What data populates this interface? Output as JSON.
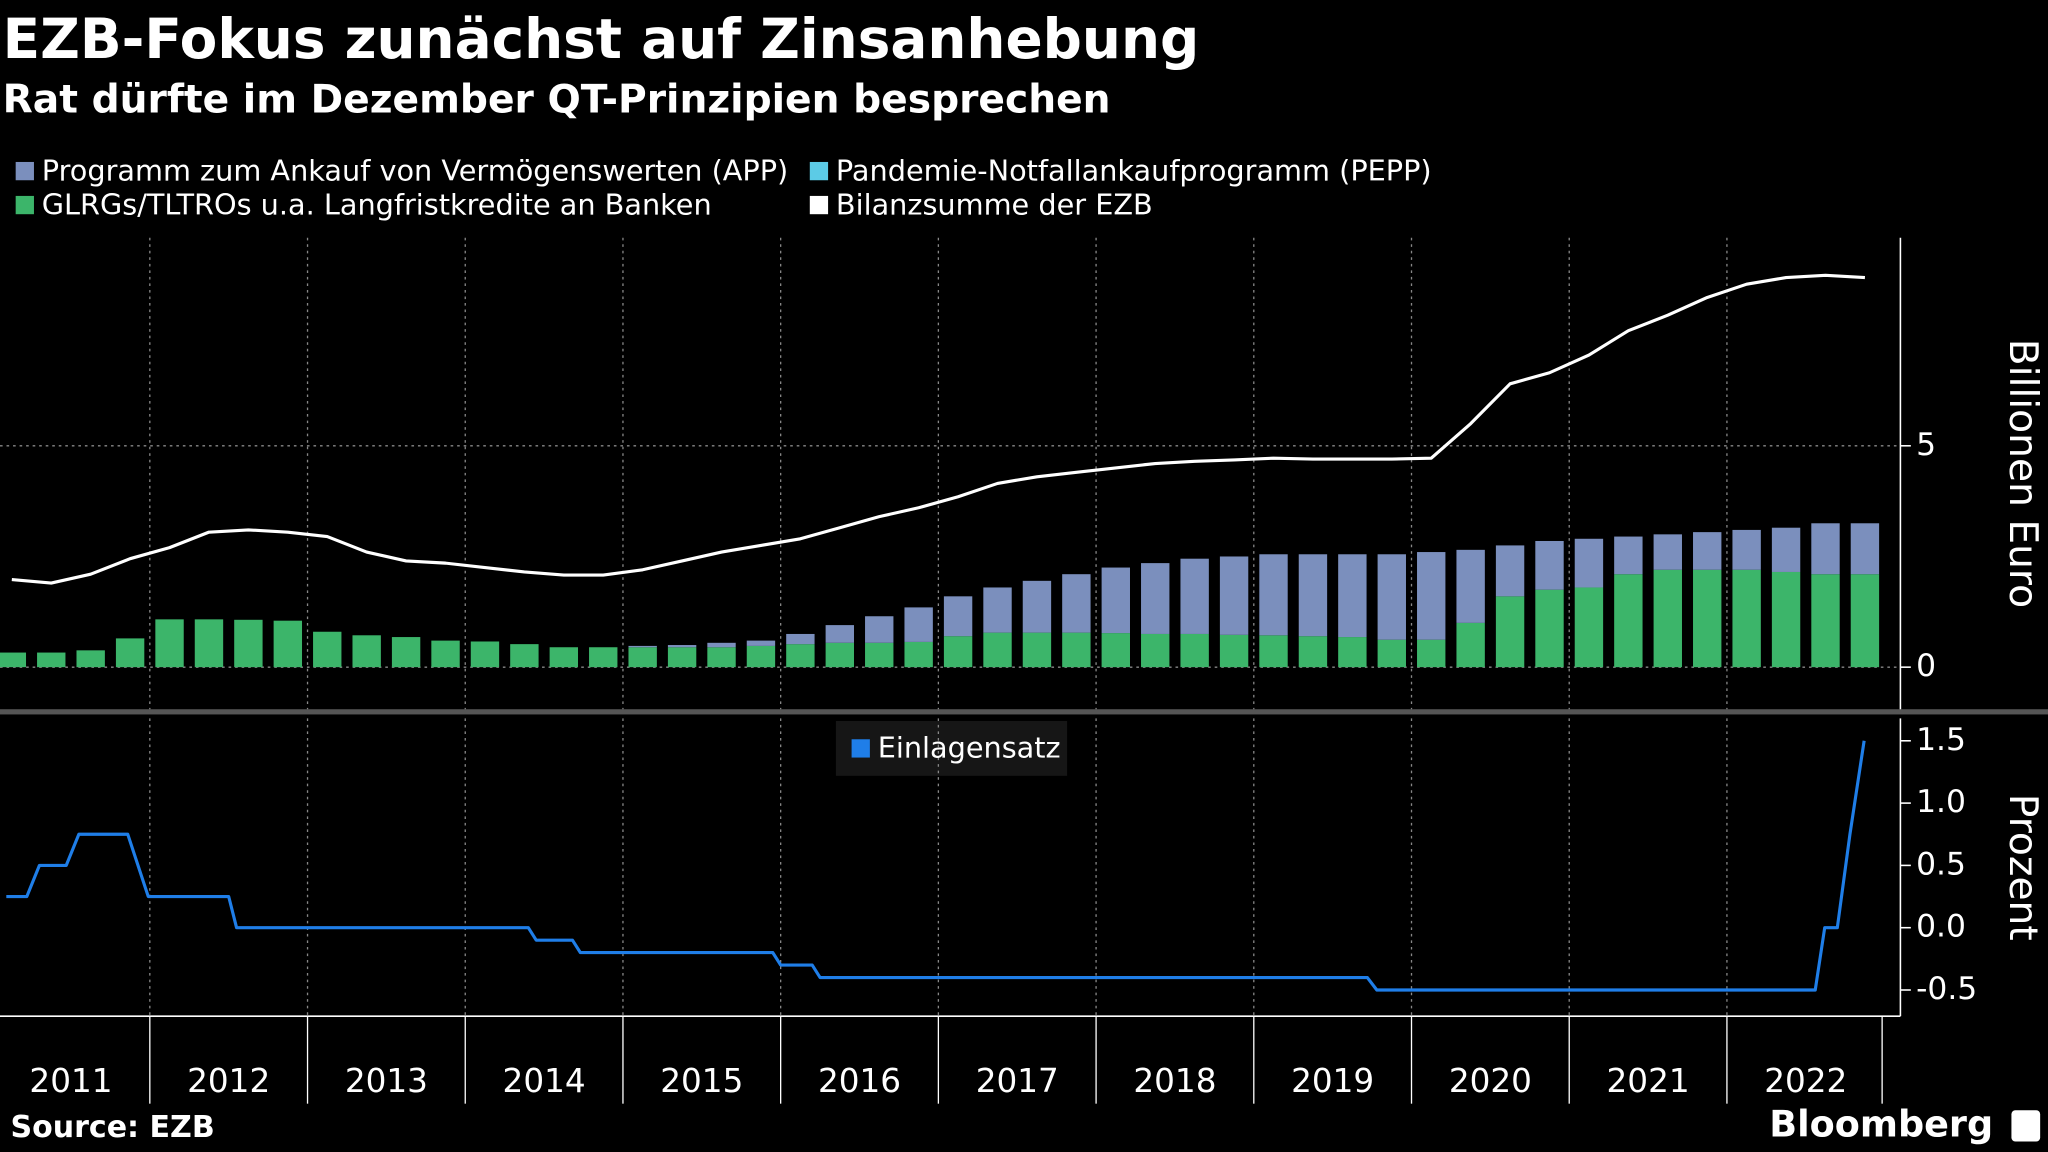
{
  "title": "EZB-Fokus zunächst auf Zinsanhebung",
  "subtitle": "Rat dürfte im Dezember QT-Prinzipien besprechen",
  "source": "Source: EZB",
  "brand": "Bloomberg",
  "chart_data": [
    {
      "type": "bar",
      "stacked": true,
      "x": [
        2011.125,
        2011.375,
        2011.625,
        2011.875,
        2012.125,
        2012.375,
        2012.625,
        2012.875,
        2013.125,
        2013.375,
        2013.625,
        2013.875,
        2014.125,
        2014.375,
        2014.625,
        2014.875,
        2015.125,
        2015.375,
        2015.625,
        2015.875,
        2016.125,
        2016.375,
        2016.625,
        2016.875,
        2017.125,
        2017.375,
        2017.625,
        2017.875,
        2018.125,
        2018.375,
        2018.625,
        2018.875,
        2019.125,
        2019.375,
        2019.625,
        2019.875,
        2020.125,
        2020.375,
        2020.625,
        2020.875,
        2021.125,
        2021.375,
        2021.625,
        2021.875,
        2022.125,
        2022.375,
        2022.625,
        2022.875
      ],
      "xlim": [
        2011.05,
        2023.1
      ],
      "xticks": [
        2011,
        2012,
        2013,
        2014,
        2015,
        2016,
        2017,
        2018,
        2019,
        2020,
        2021,
        2022
      ],
      "ylim": [
        -0.95,
        9.7
      ],
      "yticks": [
        0,
        5
      ],
      "y_label": "Billionen Euro",
      "grid": true,
      "series": [
        {
          "name": "GLRGs/TLTROs u.a. Langfristkredite an Banken",
          "color": "#3cb56a",
          "values": [
            0.33,
            0.33,
            0.38,
            0.65,
            1.08,
            1.08,
            1.07,
            1.05,
            0.8,
            0.72,
            0.68,
            0.6,
            0.58,
            0.52,
            0.45,
            0.45,
            0.45,
            0.45,
            0.45,
            0.48,
            0.52,
            0.55,
            0.55,
            0.57,
            0.7,
            0.78,
            0.78,
            0.78,
            0.77,
            0.75,
            0.75,
            0.73,
            0.72,
            0.7,
            0.68,
            0.62,
            0.62,
            1.0,
            1.6,
            1.75,
            1.8,
            2.1,
            2.2,
            2.2,
            2.2,
            2.15,
            2.1,
            2.1
          ]
        },
        {
          "name": "Programm zum Ankauf von Vermögenswerten (APP)",
          "color": "#7b8fbd",
          "values": [
            0,
            0,
            0,
            0,
            0,
            0,
            0,
            0,
            0,
            0,
            0,
            0,
            0,
            0,
            0,
            0,
            0.03,
            0.05,
            0.1,
            0.12,
            0.23,
            0.4,
            0.6,
            0.78,
            0.9,
            1.02,
            1.17,
            1.32,
            1.48,
            1.6,
            1.7,
            1.77,
            1.83,
            1.85,
            1.87,
            1.93,
            1.98,
            1.65,
            1.15,
            1.1,
            1.1,
            0.85,
            0.8,
            0.85,
            0.9,
            1.0,
            1.15,
            1.15
          ]
        },
        {
          "name": "Pandemie-Notfallankaufprogramm (PEPP)",
          "color": "#5ccbe6",
          "values": [
            0,
            0,
            0,
            0,
            0,
            0,
            0,
            0,
            0,
            0,
            0,
            0,
            0,
            0,
            0,
            0,
            0,
            0,
            0,
            0,
            0,
            0,
            0,
            0,
            0,
            0,
            0,
            0,
            0,
            0,
            0,
            0,
            0,
            0,
            0,
            0,
            0,
            0,
            0,
            0,
            0,
            0,
            0,
            0,
            0,
            0,
            0,
            0
          ]
        },
        {
          "name": "Bilanzsumme der EZB",
          "color": "#ffffff",
          "type": "line",
          "values": [
            1.98,
            1.9,
            2.1,
            2.45,
            2.7,
            3.05,
            3.1,
            3.05,
            2.95,
            2.6,
            2.4,
            2.35,
            2.25,
            2.15,
            2.08,
            2.08,
            2.2,
            2.4,
            2.6,
            2.75,
            2.9,
            3.15,
            3.4,
            3.6,
            3.85,
            4.15,
            4.3,
            4.4,
            4.5,
            4.6,
            4.65,
            4.68,
            4.72,
            4.7,
            4.7,
            4.7,
            4.72,
            5.5,
            6.4,
            6.65,
            7.05,
            7.6,
            7.95,
            8.35,
            8.65,
            8.8,
            8.85,
            8.8
          ]
        }
      ]
    },
    {
      "type": "line",
      "x": [
        2011.09,
        2011.22,
        2011.3,
        2011.47,
        2011.55,
        2011.86,
        2011.99,
        2012.5,
        2012.55,
        2014.4,
        2014.45,
        2014.68,
        2014.73,
        2015.95,
        2016.0,
        2016.2,
        2016.25,
        2019.72,
        2019.78,
        2022.56,
        2022.62,
        2022.7,
        2022.78,
        2022.87
      ],
      "xlim": [
        2011.05,
        2023.1
      ],
      "xticks": [
        2011,
        2012,
        2013,
        2014,
        2015,
        2016,
        2017,
        2018,
        2019,
        2020,
        2021,
        2022
      ],
      "ylim": [
        -0.71,
        1.68
      ],
      "yticks": [
        -0.5,
        {
          "value": 0,
          "label": "0.0"
        },
        0.5,
        {
          "value": 1,
          "label": "1.0"
        },
        1.5
      ],
      "y_label": "Prozent",
      "series": [
        {
          "name": "Einlagensatz",
          "color": "#1f7ee8",
          "values": [
            0.25,
            0.25,
            0.5,
            0.5,
            0.75,
            0.75,
            0.25,
            0.25,
            0,
            0,
            -0.1,
            -0.1,
            -0.2,
            -0.2,
            -0.3,
            -0.3,
            -0.4,
            -0.4,
            -0.5,
            -0.5,
            0,
            0,
            0.75,
            1.5
          ]
        }
      ]
    }
  ]
}
